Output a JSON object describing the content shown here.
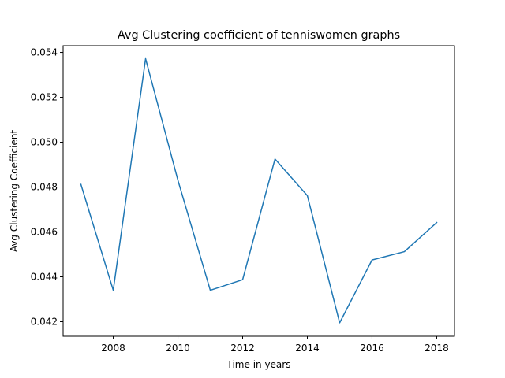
{
  "chart_data": {
    "type": "line",
    "title": "Avg Clustering coefficient of tenniswomen graphs",
    "xlabel": "Time in years",
    "ylabel": "Avg Clustering Coefficient",
    "xlim": [
      2006.45,
      2018.55
    ],
    "ylim": [
      0.04135,
      0.0543
    ],
    "x_ticks": [
      2008,
      2010,
      2012,
      2014,
      2016,
      2018
    ],
    "y_ticks": [
      0.042,
      0.044,
      0.046,
      0.048,
      0.05,
      0.052,
      0.054
    ],
    "y_tick_labels": [
      "0.042",
      "0.044",
      "0.046",
      "0.048",
      "0.050",
      "0.052",
      "0.054"
    ],
    "grid": false,
    "legend": "none",
    "series": [
      {
        "color": "#1f77b4",
        "x": [
          2007,
          2008,
          2009,
          2010,
          2011,
          2012,
          2013,
          2014,
          2015,
          2016,
          2017,
          2018
        ],
        "y": [
          0.04812,
          0.0434,
          0.05372,
          0.0483,
          0.0434,
          0.04387,
          0.04925,
          0.04762,
          0.04195,
          0.04475,
          0.04512,
          0.04642
        ]
      }
    ]
  }
}
